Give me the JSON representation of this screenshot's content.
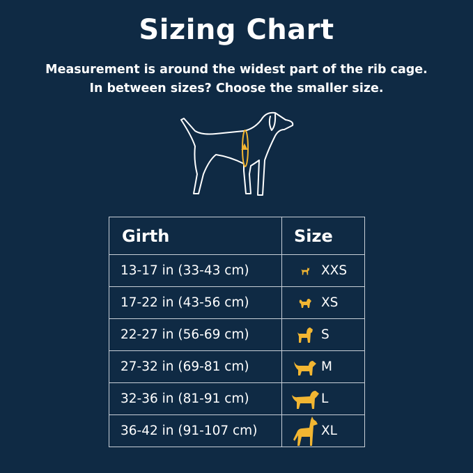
{
  "title": "Sizing Chart",
  "subtitle_lines": [
    "Measurement is around the widest part of the rib cage.",
    "In between sizes? Choose the smaller size."
  ],
  "colors": {
    "background": "#0f2a44",
    "accent": "#f2b632",
    "text": "#ffffff"
  },
  "illustration": {
    "icon": "dog-girth-measurement-icon"
  },
  "table": {
    "headers": {
      "girth": "Girth",
      "size": "Size"
    },
    "rows": [
      {
        "girth": "13-17 in (33-43 cm)",
        "size": "XXS",
        "icon": "chihuahua-icon"
      },
      {
        "girth": "17-22 in (43-56 cm)",
        "size": "XS",
        "icon": "pomeranian-icon"
      },
      {
        "girth": "22-27 in (56-69 cm)",
        "size": "S",
        "icon": "poodle-icon"
      },
      {
        "girth": "27-32 in (69-81 cm)",
        "size": "M",
        "icon": "spaniel-icon"
      },
      {
        "girth": "32-36 in (81-91 cm)",
        "size": "L",
        "icon": "retriever-icon"
      },
      {
        "girth": "36-42 in (91-107 cm)",
        "size": "XL",
        "icon": "great-dane-icon"
      }
    ]
  }
}
